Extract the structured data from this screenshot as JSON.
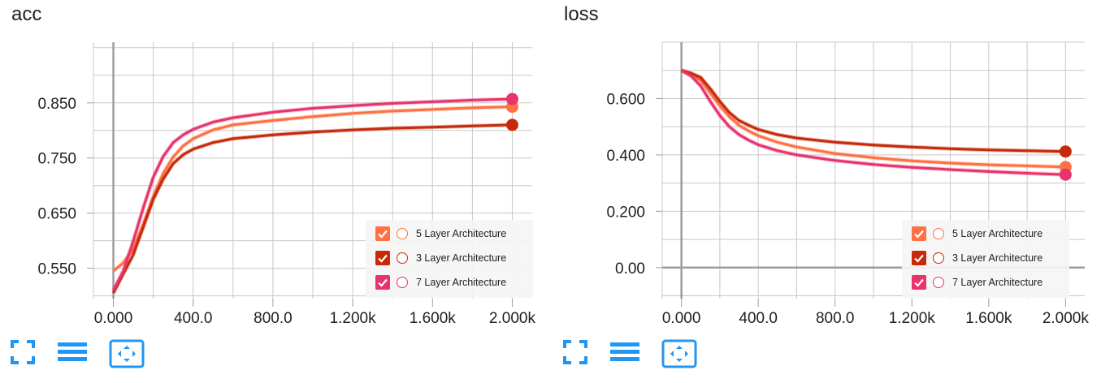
{
  "series_style": [
    {
      "name": "5 Layer Architecture",
      "color": "#ff7043"
    },
    {
      "name": "3 Layer Architecture",
      "color": "#c62a0a"
    },
    {
      "name": "7 Layer Architecture",
      "color": "#e8336d"
    }
  ],
  "toolbar": {
    "fit_icon": "fullscreen-icon",
    "log_icon": "lines-icon",
    "domain_icon": "fit-domain-icon",
    "color": "#2196f3"
  },
  "chart_data": [
    {
      "type": "line",
      "title": "acc",
      "xlabel": "",
      "ylabel": "",
      "xlim": [
        -100,
        2100
      ],
      "ylim": [
        0.495,
        0.96
      ],
      "xticks": [
        0,
        400,
        800,
        1200,
        1600,
        2000
      ],
      "xtick_labels": [
        "0.000",
        "400.0",
        "800.0",
        "1.200k",
        "1.600k",
        "2.000k"
      ],
      "yticks": [
        0.55,
        0.65,
        0.75,
        0.85
      ],
      "ytick_labels": [
        "0.550",
        "0.650",
        "0.750",
        "0.850"
      ],
      "grid": true,
      "legend_position": "bottom-right",
      "series": [
        {
          "name": "5 Layer Architecture",
          "x": [
            0,
            50,
            100,
            150,
            200,
            250,
            300,
            350,
            400,
            500,
            600,
            800,
            1000,
            1200,
            1400,
            1600,
            1800,
            2000
          ],
          "y": [
            0.545,
            0.56,
            0.585,
            0.63,
            0.68,
            0.722,
            0.752,
            0.772,
            0.785,
            0.801,
            0.81,
            0.818,
            0.825,
            0.831,
            0.835,
            0.838,
            0.841,
            0.843
          ]
        },
        {
          "name": "3 Layer Architecture",
          "x": [
            0,
            50,
            100,
            150,
            200,
            250,
            300,
            350,
            400,
            500,
            600,
            800,
            1000,
            1200,
            1400,
            1600,
            1800,
            2000
          ],
          "y": [
            0.505,
            0.54,
            0.575,
            0.625,
            0.675,
            0.712,
            0.74,
            0.756,
            0.766,
            0.778,
            0.785,
            0.792,
            0.797,
            0.801,
            0.804,
            0.806,
            0.808,
            0.81
          ]
        },
        {
          "name": "7 Layer Architecture",
          "x": [
            0,
            50,
            100,
            150,
            200,
            250,
            300,
            350,
            400,
            500,
            600,
            800,
            1000,
            1200,
            1400,
            1600,
            1800,
            2000
          ],
          "y": [
            0.51,
            0.545,
            0.6,
            0.66,
            0.715,
            0.753,
            0.778,
            0.792,
            0.802,
            0.815,
            0.823,
            0.833,
            0.84,
            0.845,
            0.849,
            0.852,
            0.855,
            0.857
          ]
        }
      ]
    },
    {
      "type": "line",
      "title": "loss",
      "xlabel": "",
      "ylabel": "",
      "xlim": [
        -100,
        2100
      ],
      "ylim": [
        -0.11,
        0.8
      ],
      "xticks": [
        0,
        400,
        800,
        1200,
        1600,
        2000
      ],
      "xtick_labels": [
        "0.000",
        "400.0",
        "800.0",
        "1.200k",
        "1.600k",
        "2.000k"
      ],
      "yticks": [
        0.0,
        0.2,
        0.4,
        0.6
      ],
      "ytick_labels": [
        "0.00",
        "0.200",
        "0.400",
        "0.600"
      ],
      "grid": true,
      "legend_position": "bottom-right",
      "series": [
        {
          "name": "5 Layer Architecture",
          "x": [
            0,
            50,
            100,
            150,
            200,
            250,
            300,
            350,
            400,
            500,
            600,
            800,
            1000,
            1200,
            1400,
            1600,
            1800,
            2000
          ],
          "y": [
            0.7,
            0.685,
            0.665,
            0.62,
            0.575,
            0.535,
            0.505,
            0.485,
            0.468,
            0.445,
            0.428,
            0.405,
            0.39,
            0.379,
            0.371,
            0.365,
            0.361,
            0.357
          ]
        },
        {
          "name": "3 Layer Architecture",
          "x": [
            0,
            50,
            100,
            150,
            200,
            250,
            300,
            350,
            400,
            500,
            600,
            800,
            1000,
            1200,
            1400,
            1600,
            1800,
            2000
          ],
          "y": [
            0.7,
            0.69,
            0.675,
            0.635,
            0.59,
            0.55,
            0.522,
            0.505,
            0.49,
            0.472,
            0.46,
            0.445,
            0.435,
            0.428,
            0.422,
            0.418,
            0.415,
            0.412
          ]
        },
        {
          "name": "7 Layer Architecture",
          "x": [
            0,
            50,
            100,
            150,
            200,
            250,
            300,
            350,
            400,
            500,
            600,
            800,
            1000,
            1200,
            1400,
            1600,
            1800,
            2000
          ],
          "y": [
            0.7,
            0.68,
            0.645,
            0.59,
            0.54,
            0.5,
            0.472,
            0.452,
            0.436,
            0.415,
            0.4,
            0.38,
            0.366,
            0.356,
            0.348,
            0.341,
            0.335,
            0.33
          ]
        }
      ]
    }
  ]
}
